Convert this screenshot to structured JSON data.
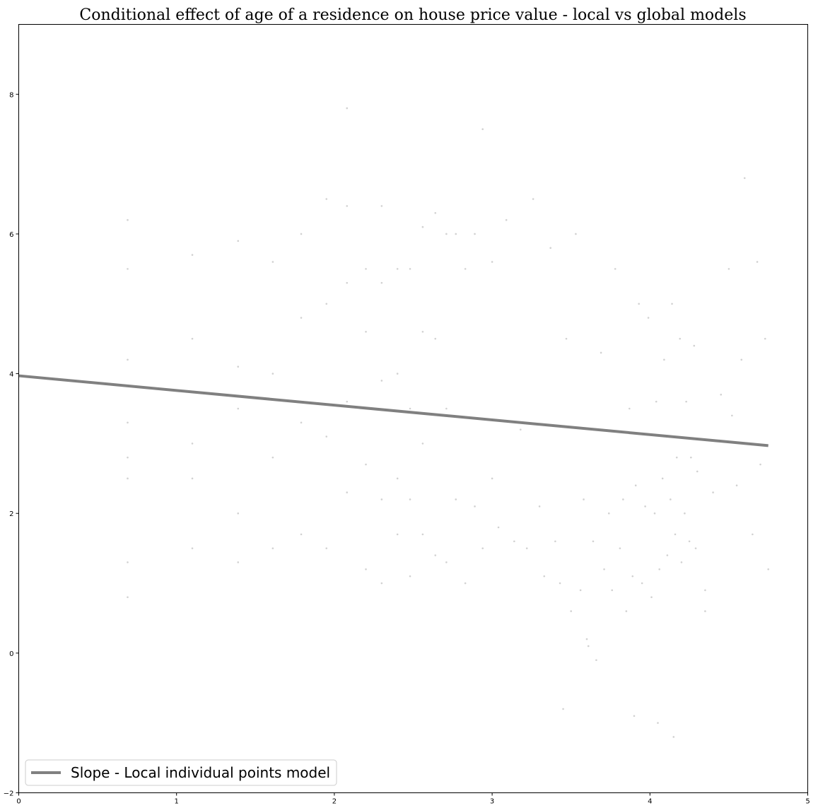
{
  "chart_data": {
    "type": "scatter",
    "title": "Conditional effect of age of a residence on house price value - local vs global models",
    "xlabel": "",
    "ylabel": "",
    "xlim": [
      0,
      5
    ],
    "ylim": [
      -2,
      9
    ],
    "xticks": [
      "0",
      "1",
      "2",
      "3",
      "4",
      "5"
    ],
    "yticks": [
      "−2",
      "0",
      "2",
      "4",
      "6",
      "8"
    ],
    "grid": false,
    "legend": {
      "placement": "bottom-left",
      "entries": [
        "Slope - Local individual points model"
      ]
    },
    "colors": {
      "points": "#000000",
      "line": "#808080"
    },
    "series": [
      {
        "kind": "line",
        "x": [
          0.0,
          4.75
        ],
        "y": [
          3.97,
          2.97
        ]
      },
      {
        "kind": "scatter",
        "x": [
          0.69,
          0.69,
          0.69,
          0.69,
          0.69,
          0.69,
          0.69,
          0.69,
          1.1,
          1.1,
          1.1,
          1.1,
          1.1,
          1.39,
          1.39,
          1.39,
          1.39,
          1.39,
          1.61,
          1.61,
          1.61,
          1.61,
          1.79,
          1.79,
          1.79,
          1.79,
          1.95,
          1.95,
          1.95,
          1.95,
          2.08,
          2.08,
          2.08,
          2.08,
          2.08,
          2.2,
          2.2,
          2.2,
          2.2,
          2.3,
          2.3,
          2.3,
          2.3,
          2.3,
          2.4,
          2.4,
          2.4,
          2.4,
          2.48,
          2.48,
          2.48,
          2.48,
          2.56,
          2.56,
          2.56,
          2.56,
          2.64,
          2.64,
          2.64,
          2.71,
          2.71,
          2.71,
          2.77,
          2.77,
          2.83,
          2.83,
          2.89,
          2.89,
          2.94,
          2.94,
          3.0,
          3.0,
          3.04,
          3.09,
          3.14,
          3.18,
          3.22,
          3.26,
          3.3,
          3.33,
          3.37,
          3.4,
          3.43,
          3.47,
          3.5,
          3.53,
          3.56,
          3.58,
          3.61,
          3.64,
          3.66,
          3.69,
          3.71,
          3.74,
          3.76,
          3.78,
          3.81,
          3.83,
          3.85,
          3.87,
          3.89,
          3.91,
          3.93,
          3.95,
          3.97,
          3.99,
          4.01,
          4.03,
          4.04,
          4.06,
          4.08,
          4.09,
          4.11,
          4.13,
          4.14,
          4.16,
          4.17,
          4.19,
          4.2,
          4.22,
          4.23,
          4.25,
          4.26,
          4.28,
          4.29,
          4.3,
          4.5,
          4.52,
          4.55,
          4.58,
          4.6,
          4.62,
          4.65,
          4.68,
          4.7,
          4.73,
          4.75,
          4.45,
          4.4,
          4.35,
          3.45,
          3.6,
          3.9,
          4.05,
          4.15,
          4.35
        ],
        "y": [
          5.5,
          4.2,
          3.3,
          2.8,
          1.3,
          6.2,
          0.8,
          2.5,
          5.7,
          4.5,
          3.0,
          2.5,
          1.5,
          5.9,
          4.1,
          3.5,
          2.0,
          1.3,
          5.6,
          4.0,
          2.8,
          1.5,
          6.0,
          4.8,
          3.3,
          1.7,
          6.5,
          5.0,
          3.1,
          1.5,
          7.8,
          6.4,
          5.3,
          3.6,
          2.3,
          5.5,
          4.6,
          2.7,
          1.2,
          6.4,
          5.3,
          3.9,
          2.2,
          1.0,
          5.5,
          4.0,
          2.5,
          1.7,
          5.5,
          3.5,
          2.2,
          1.1,
          6.1,
          4.6,
          3.0,
          1.7,
          6.3,
          4.5,
          1.4,
          6.0,
          3.5,
          1.3,
          6.0,
          2.2,
          5.5,
          1.0,
          6.0,
          2.1,
          7.5,
          1.5,
          5.6,
          2.5,
          1.8,
          6.2,
          1.6,
          3.2,
          1.5,
          6.5,
          2.1,
          1.1,
          5.8,
          1.6,
          1.0,
          4.5,
          0.6,
          6.0,
          0.9,
          2.2,
          0.1,
          1.6,
          -0.1,
          4.3,
          1.2,
          2.0,
          0.9,
          5.5,
          1.5,
          2.2,
          0.6,
          3.5,
          1.1,
          2.4,
          5.0,
          1.0,
          2.1,
          4.8,
          0.8,
          2.0,
          3.6,
          1.2,
          2.5,
          4.2,
          1.4,
          2.2,
          5.0,
          1.7,
          2.8,
          4.5,
          1.3,
          2.0,
          3.6,
          1.6,
          2.8,
          4.4,
          1.5,
          2.6,
          5.5,
          3.4,
          2.4,
          4.2,
          6.8,
          3.0,
          1.7,
          5.6,
          2.7,
          4.5,
          1.2,
          3.7,
          2.3,
          0.6,
          -0.8,
          0.2,
          -0.9,
          -1.0,
          -1.2,
          0.9
        ]
      }
    ]
  }
}
